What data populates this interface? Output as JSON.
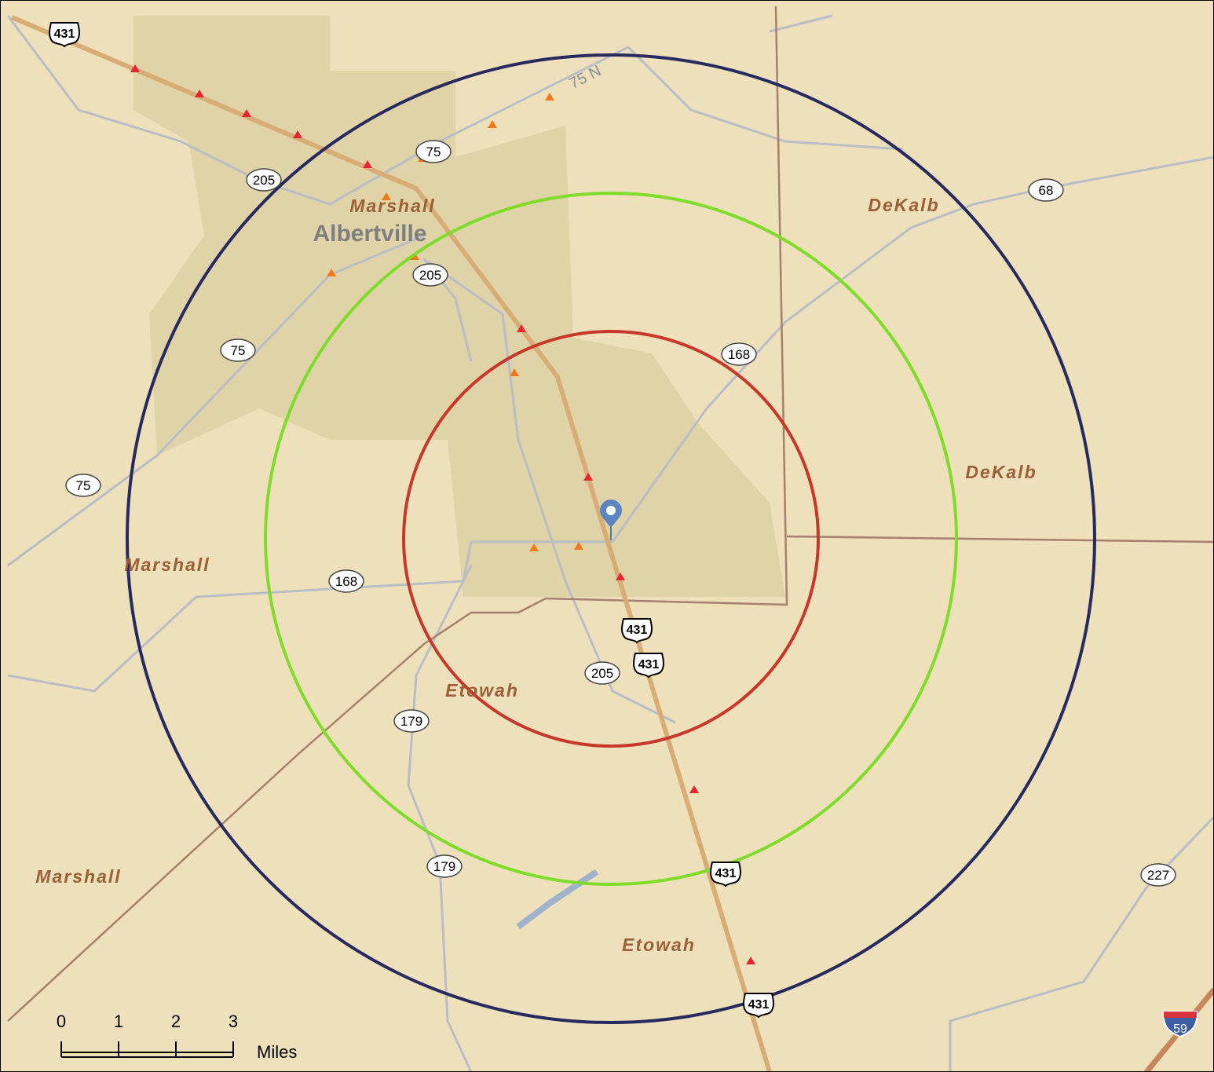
{
  "map_labels": [
    {
      "text": "Marshall",
      "kind": "county"
    },
    {
      "text": "Albertville",
      "kind": "city"
    },
    {
      "text": "DeKalb",
      "kind": "county"
    },
    {
      "text": "DeKalb",
      "kind": "county"
    },
    {
      "text": "Marshall",
      "kind": "county"
    },
    {
      "text": "Etowah",
      "kind": "county"
    },
    {
      "text": "Marshall",
      "kind": "county"
    },
    {
      "text": "Etowah",
      "kind": "county"
    }
  ],
  "road_labels": [
    "75 N"
  ],
  "shields": [
    {
      "label": "431",
      "kind": "us"
    },
    {
      "label": "431",
      "kind": "us"
    },
    {
      "label": "431",
      "kind": "us"
    },
    {
      "label": "431",
      "kind": "us"
    },
    {
      "label": "431",
      "kind": "us"
    },
    {
      "label": "75",
      "kind": "state"
    },
    {
      "label": "205",
      "kind": "state"
    },
    {
      "label": "205",
      "kind": "state"
    },
    {
      "label": "75",
      "kind": "state"
    },
    {
      "label": "75",
      "kind": "state"
    },
    {
      "label": "168",
      "kind": "state"
    },
    {
      "label": "168",
      "kind": "state"
    },
    {
      "label": "68",
      "kind": "state"
    },
    {
      "label": "205",
      "kind": "state"
    },
    {
      "label": "179",
      "kind": "state"
    },
    {
      "label": "179",
      "kind": "state"
    },
    {
      "label": "227",
      "kind": "state"
    },
    {
      "label": "59",
      "kind": "interstate"
    }
  ],
  "scale_bar": {
    "ticks": [
      0,
      1,
      2,
      3
    ],
    "unit": "Miles"
  }
}
